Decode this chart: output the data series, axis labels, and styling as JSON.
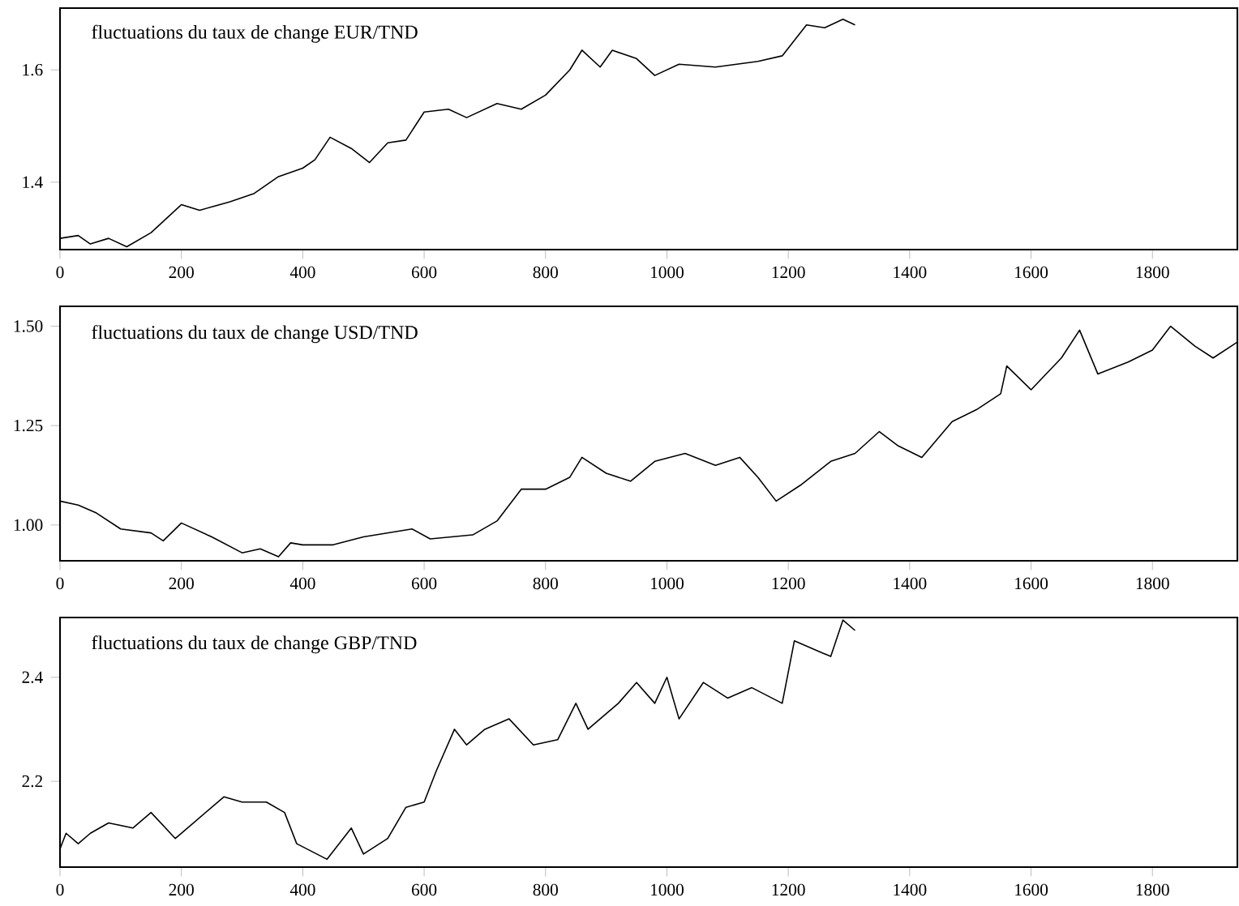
{
  "chart_data": [
    {
      "type": "line",
      "title": "fluctuations du taux de change EUR/TND",
      "color": "#000000",
      "x": [
        0,
        30,
        50,
        80,
        110,
        150,
        200,
        230,
        280,
        320,
        360,
        400,
        420,
        445,
        480,
        510,
        540,
        570,
        600,
        640,
        670,
        720,
        760,
        800,
        840,
        860,
        890,
        910,
        950,
        980,
        1020,
        1080,
        1150,
        1190,
        1230,
        1260,
        1290,
        1310
      ],
      "values": [
        1.3,
        1.305,
        1.29,
        1.3,
        1.285,
        1.31,
        1.36,
        1.35,
        1.365,
        1.38,
        1.41,
        1.425,
        1.44,
        1.48,
        1.46,
        1.435,
        1.47,
        1.475,
        1.525,
        1.53,
        1.515,
        1.54,
        1.53,
        1.555,
        1.6,
        1.635,
        1.605,
        1.635,
        1.62,
        1.59,
        1.61,
        1.605,
        1.615,
        1.625,
        1.68,
        1.675,
        1.69,
        1.68
      ],
      "xlim": [
        0,
        1940
      ],
      "ylim": [
        1.28,
        1.71
      ],
      "xticks": [
        0,
        200,
        400,
        600,
        800,
        1000,
        1200,
        1400,
        1600,
        1800
      ],
      "yticks": [
        1.4,
        1.6
      ]
    },
    {
      "type": "line",
      "title": "fluctuations du taux de change USD/TND",
      "color": "#000000",
      "x": [
        0,
        30,
        60,
        100,
        150,
        170,
        200,
        250,
        300,
        330,
        360,
        380,
        400,
        450,
        500,
        580,
        610,
        680,
        720,
        760,
        800,
        840,
        860,
        900,
        940,
        980,
        1030,
        1080,
        1120,
        1150,
        1180,
        1220,
        1270,
        1310,
        1350,
        1380,
        1420,
        1470,
        1510,
        1550,
        1560,
        1600,
        1650,
        1680,
        1710,
        1760,
        1800,
        1830,
        1870,
        1900,
        1940
      ],
      "values": [
        1.06,
        1.05,
        1.03,
        0.99,
        0.98,
        0.96,
        1.005,
        0.97,
        0.93,
        0.94,
        0.92,
        0.955,
        0.95,
        0.95,
        0.97,
        0.99,
        0.965,
        0.975,
        1.01,
        1.09,
        1.09,
        1.12,
        1.17,
        1.13,
        1.11,
        1.16,
        1.18,
        1.15,
        1.17,
        1.12,
        1.06,
        1.1,
        1.16,
        1.18,
        1.235,
        1.2,
        1.17,
        1.26,
        1.29,
        1.33,
        1.4,
        1.34,
        1.42,
        1.49,
        1.38,
        1.41,
        1.44,
        1.5,
        1.45,
        1.42,
        1.46
      ],
      "xlim": [
        0,
        1940
      ],
      "ylim": [
        0.91,
        1.55
      ],
      "xticks": [
        0,
        200,
        400,
        600,
        800,
        1000,
        1200,
        1400,
        1600,
        1800
      ],
      "yticks": [
        {
          "value": 1.0,
          "label": "1.00"
        },
        1.25,
        {
          "value": 1.5,
          "label": "1.50"
        }
      ]
    },
    {
      "type": "line",
      "title": "fluctuations du taux de change GBP/TND",
      "color": "#000000",
      "x": [
        0,
        10,
        30,
        50,
        80,
        120,
        150,
        190,
        230,
        270,
        300,
        340,
        370,
        390,
        440,
        480,
        500,
        540,
        570,
        600,
        620,
        650,
        670,
        700,
        740,
        780,
        820,
        850,
        870,
        920,
        950,
        980,
        1000,
        1020,
        1060,
        1100,
        1140,
        1190,
        1210,
        1250,
        1270,
        1290,
        1310
      ],
      "values": [
        2.07,
        2.1,
        2.08,
        2.1,
        2.12,
        2.11,
        2.14,
        2.09,
        2.13,
        2.17,
        2.16,
        2.16,
        2.14,
        2.08,
        2.05,
        2.11,
        2.06,
        2.09,
        2.15,
        2.16,
        2.22,
        2.3,
        2.27,
        2.3,
        2.32,
        2.27,
        2.28,
        2.35,
        2.3,
        2.35,
        2.39,
        2.35,
        2.4,
        2.32,
        2.39,
        2.36,
        2.38,
        2.35,
        2.47,
        2.45,
        2.44,
        2.51,
        2.49
      ],
      "xlim": [
        0,
        1940
      ],
      "ylim": [
        2.035,
        2.515
      ],
      "xticks": [
        0,
        200,
        400,
        600,
        800,
        1000,
        1200,
        1400,
        1600,
        1800
      ],
      "yticks": [
        2.2,
        2.4
      ]
    }
  ]
}
